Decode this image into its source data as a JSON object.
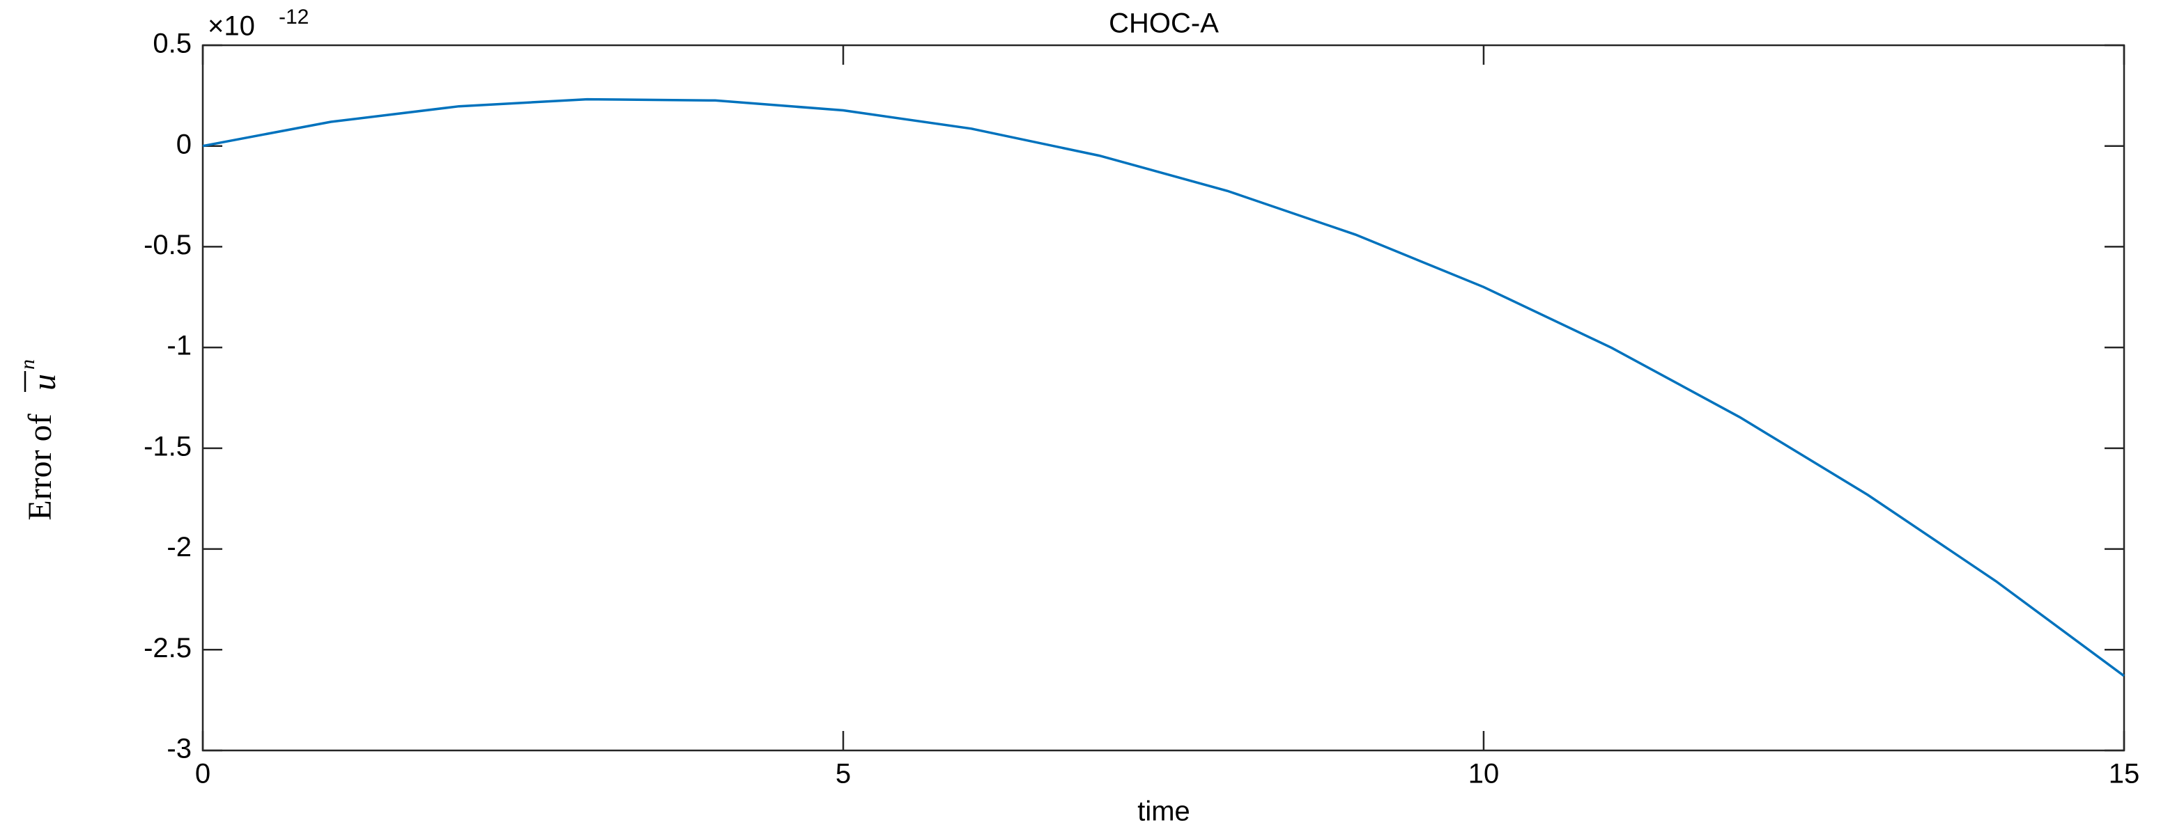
{
  "chart_data": {
    "type": "line",
    "title": "CHOC-A",
    "xlabel": "time",
    "ylabel": "Error of",
    "ylabel_symbol": "u",
    "ylabel_superscript": "n",
    "y_scale_base": "×10",
    "y_scale_exponent": "-12",
    "x": [
      0,
      1,
      2,
      3,
      4,
      5,
      6,
      7,
      8,
      9,
      10,
      11,
      12,
      13,
      14,
      15
    ],
    "series": [
      {
        "name": "Error",
        "color": "#0072bd",
        "values": [
          0,
          0.12,
          0.197,
          0.232,
          0.226,
          0.177,
          0.086,
          -0.048,
          -0.223,
          -0.44,
          -0.7,
          -1.002,
          -1.346,
          -1.732,
          -2.16,
          -2.63
        ]
      }
    ],
    "xlim": [
      0,
      15
    ],
    "xticks": [
      0,
      5,
      10,
      15
    ],
    "ylim": [
      -3,
      0.5
    ],
    "yticks": [
      0.5,
      0,
      -0.5,
      -1,
      -1.5,
      -2,
      -2.5,
      -3
    ],
    "grid": false
  }
}
